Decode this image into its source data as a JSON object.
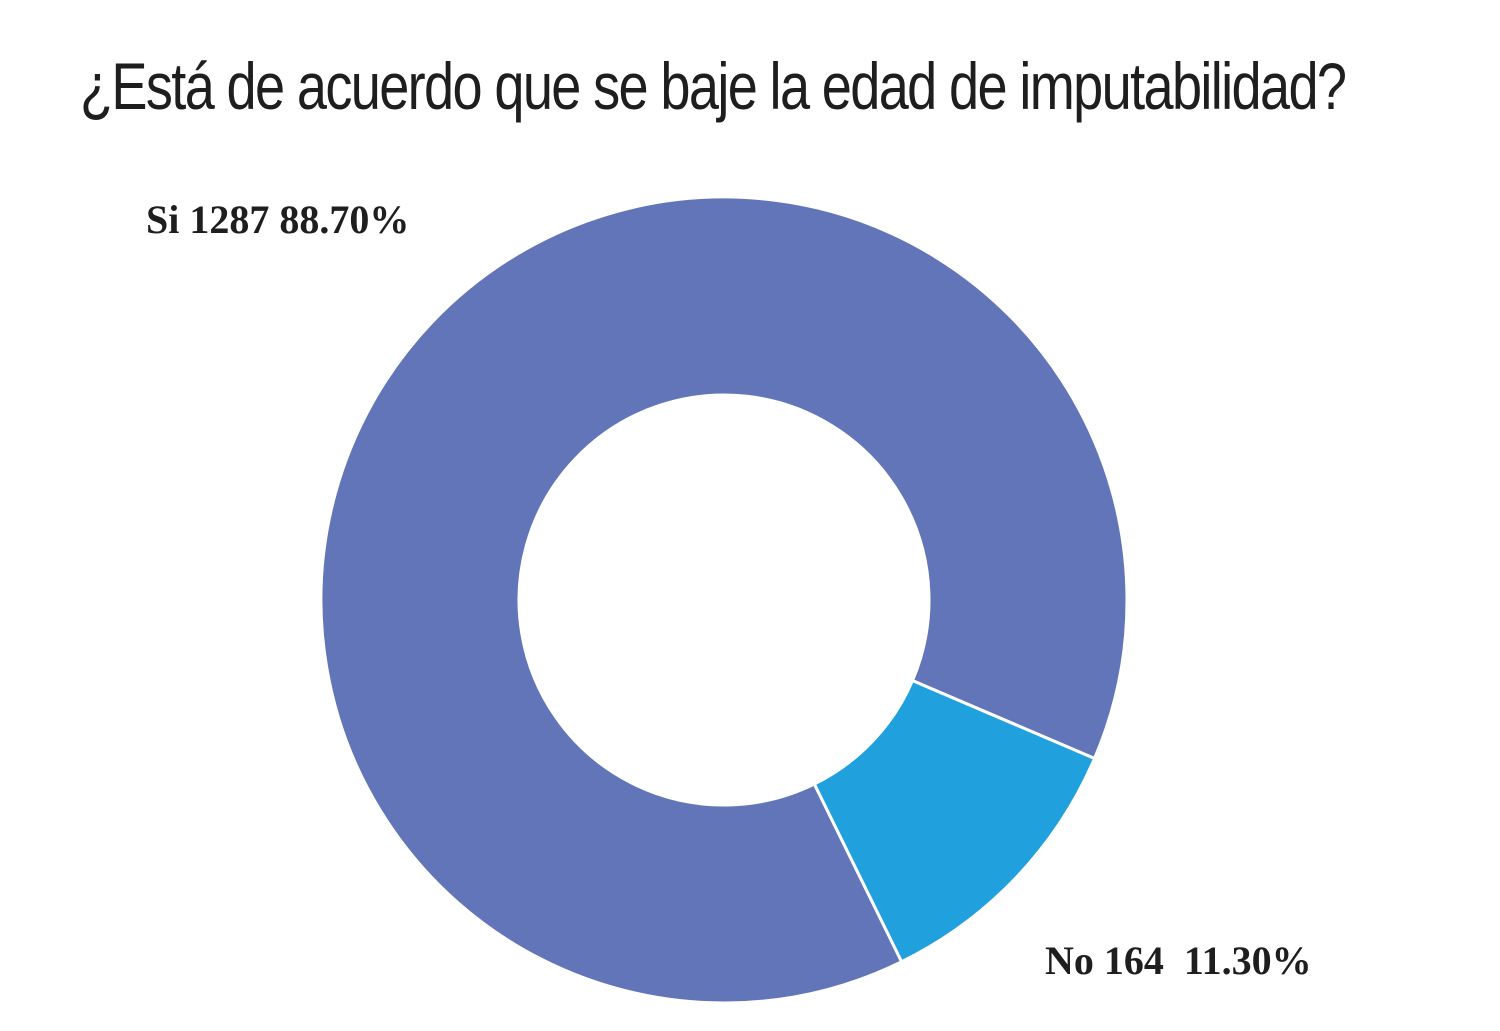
{
  "chart_data": {
    "type": "pie",
    "variant": "donut",
    "title": "¿Está de acuerdo que se baje la edad de imputabilidad?",
    "slices": [
      {
        "label": "Si",
        "count": 1287,
        "percent": 88.7,
        "color": "#6175b8",
        "text": "Si 1287 88.70%"
      },
      {
        "label": "No",
        "count": 164,
        "percent": 11.3,
        "color": "#20a0dc",
        "text": "No 164  11.30%"
      }
    ]
  }
}
